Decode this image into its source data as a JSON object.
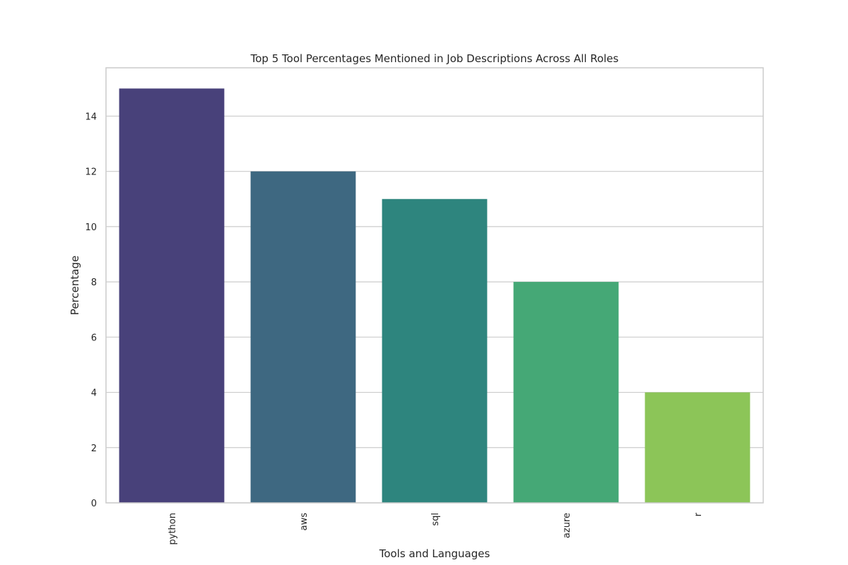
{
  "chart_data": {
    "type": "bar",
    "title": "Top 5 Tool Percentages Mentioned in Job Descriptions Across All Roles",
    "xlabel": "Tools and Languages",
    "ylabel": "Percentage",
    "categories": [
      "python",
      "aws",
      "sql",
      "azure",
      "r"
    ],
    "values": [
      15,
      12,
      11,
      8,
      4
    ],
    "ylim": [
      0,
      15.75
    ],
    "yticks": [
      0,
      2,
      4,
      6,
      8,
      10,
      12,
      14
    ],
    "grid": "horizontal",
    "x_tick_rotation": 90,
    "colors": [
      "#48417a",
      "#3e6881",
      "#2e857e",
      "#45a876",
      "#8cc558"
    ]
  }
}
